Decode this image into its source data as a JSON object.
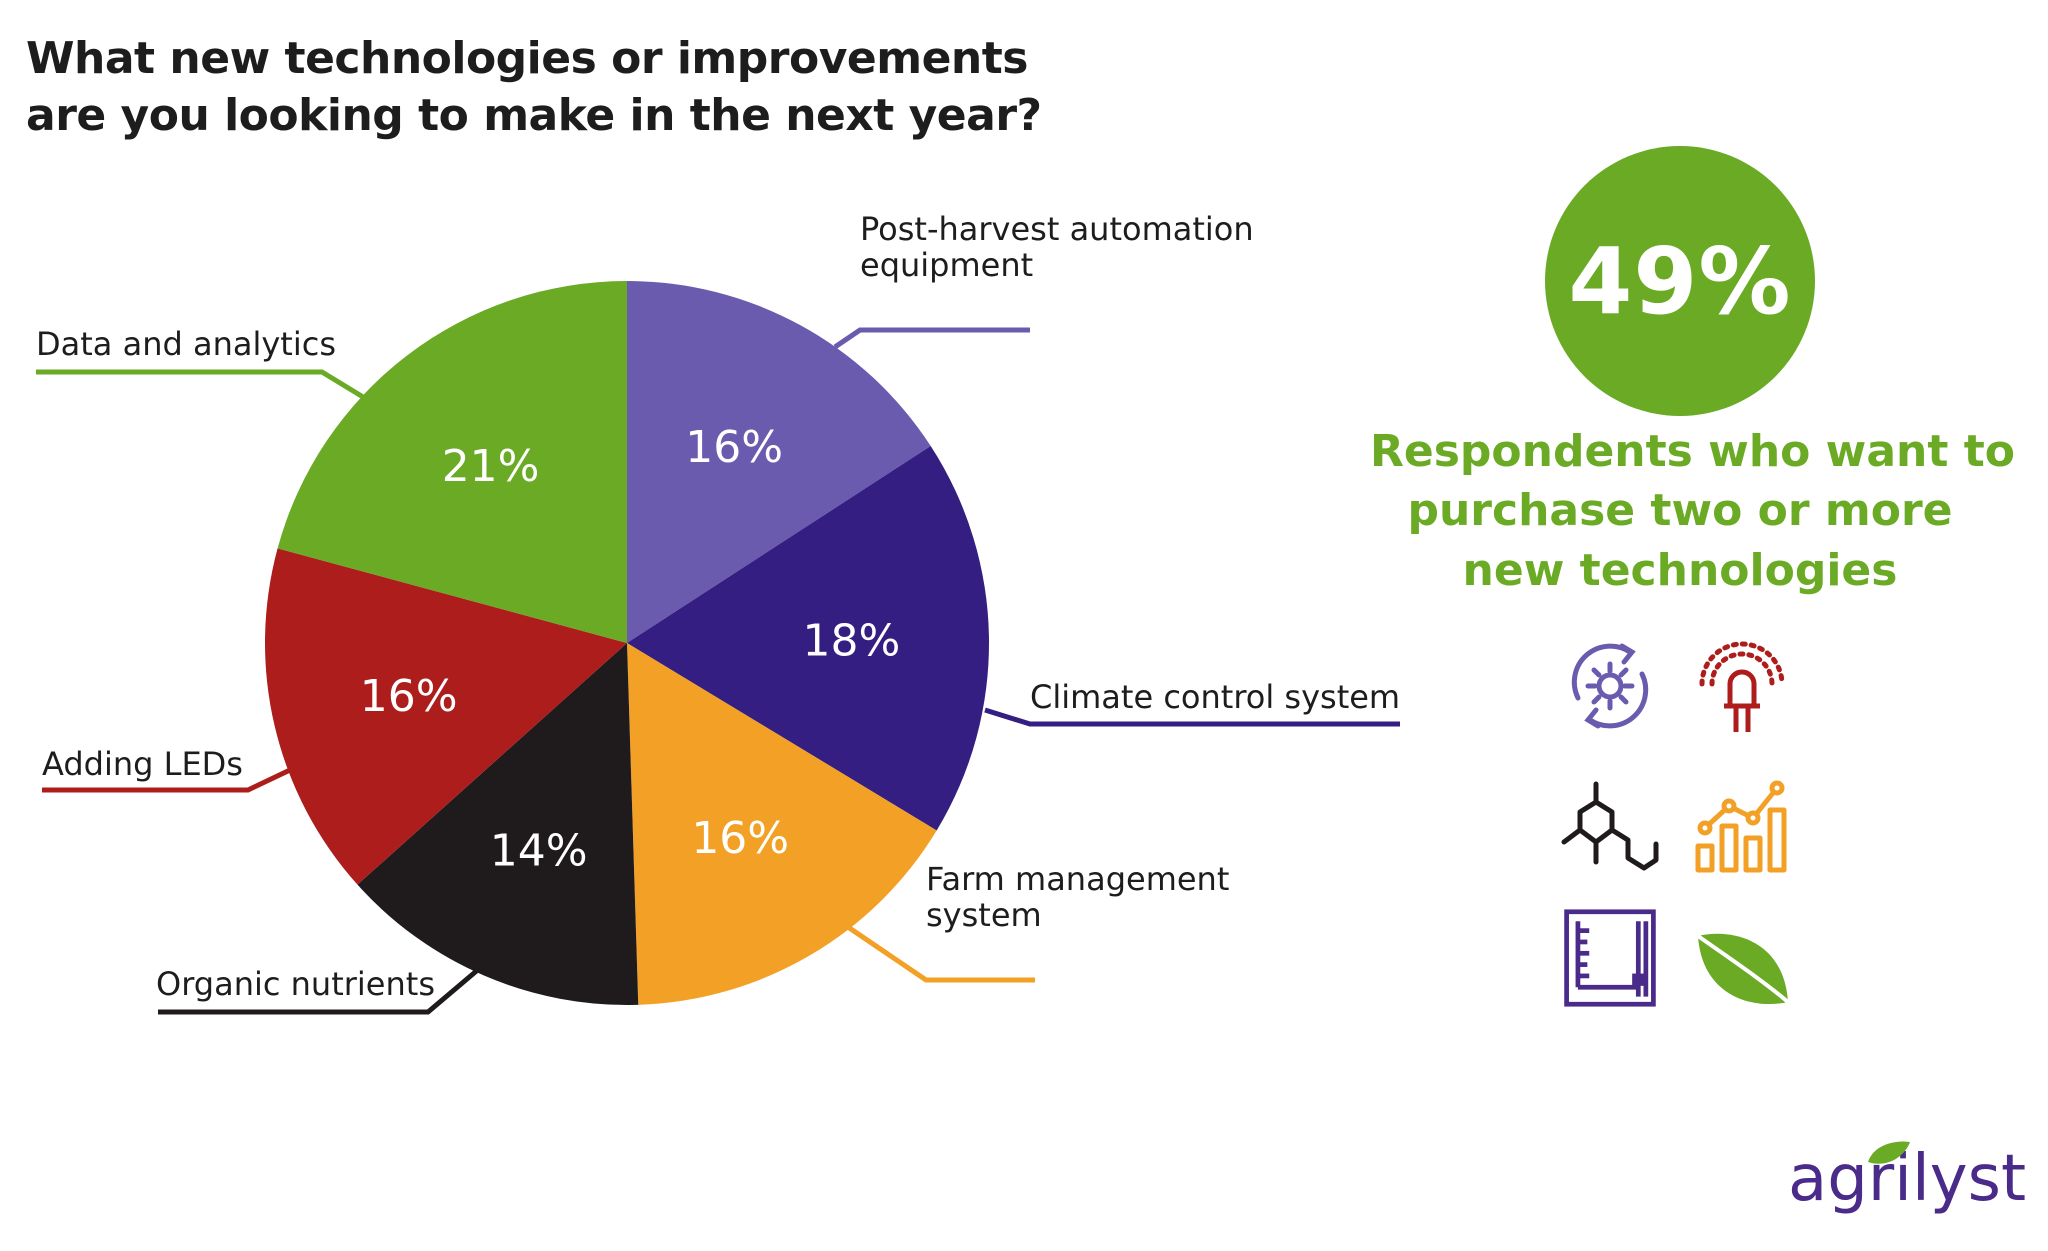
{
  "title_lines": [
    "What new technologies or improvements",
    "are you looking to make in the next year?"
  ],
  "chart_data": {
    "type": "pie",
    "title": "What new technologies or improvements are you looking to make in the next year?",
    "slices": [
      {
        "label": "Post-harvest automation equipment",
        "label_lines": [
          "Post-harvest automation",
          "equipment"
        ],
        "value": 16,
        "value_label": "16%",
        "color": "#6b5baf"
      },
      {
        "label": "Climate control system",
        "label_lines": [
          "Climate control system"
        ],
        "value": 18,
        "value_label": "18%",
        "color": "#341e82"
      },
      {
        "label": "Farm management system",
        "label_lines": [
          "Farm management",
          "system"
        ],
        "value": 16,
        "value_label": "16%",
        "color": "#f2a126"
      },
      {
        "label": "Organic nutrients",
        "label_lines": [
          "Organic nutrients"
        ],
        "value": 14,
        "value_label": "14%",
        "color": "#1f1b1c"
      },
      {
        "label": "Adding LEDs",
        "label_lines": [
          "Adding LEDs"
        ],
        "value": 16,
        "value_label": "16%",
        "color": "#ad1d1c"
      },
      {
        "label": "Data and analytics",
        "label_lines": [
          "Data and analytics"
        ],
        "value": 21,
        "value_label": "21%",
        "color": "#6aaa24"
      }
    ]
  },
  "stat": {
    "value": "49%",
    "caption_lines": [
      "Respondents who want to",
      "purchase two or more",
      "new technologies"
    ]
  },
  "icons": [
    "climate-cycle-icon",
    "led-bulb-icon",
    "molecule-icon",
    "analytics-chart-icon",
    "farm-management-panel-icon",
    "leaf-icon"
  ],
  "brand": {
    "name": "agrilyst"
  },
  "colors": {
    "green": "#6aaa24",
    "purple": "#6b5baf",
    "indigo": "#341e82",
    "orange": "#f2a126",
    "black": "#1f1b1c",
    "red": "#ad1d1c",
    "brand": "#4a2b89"
  }
}
